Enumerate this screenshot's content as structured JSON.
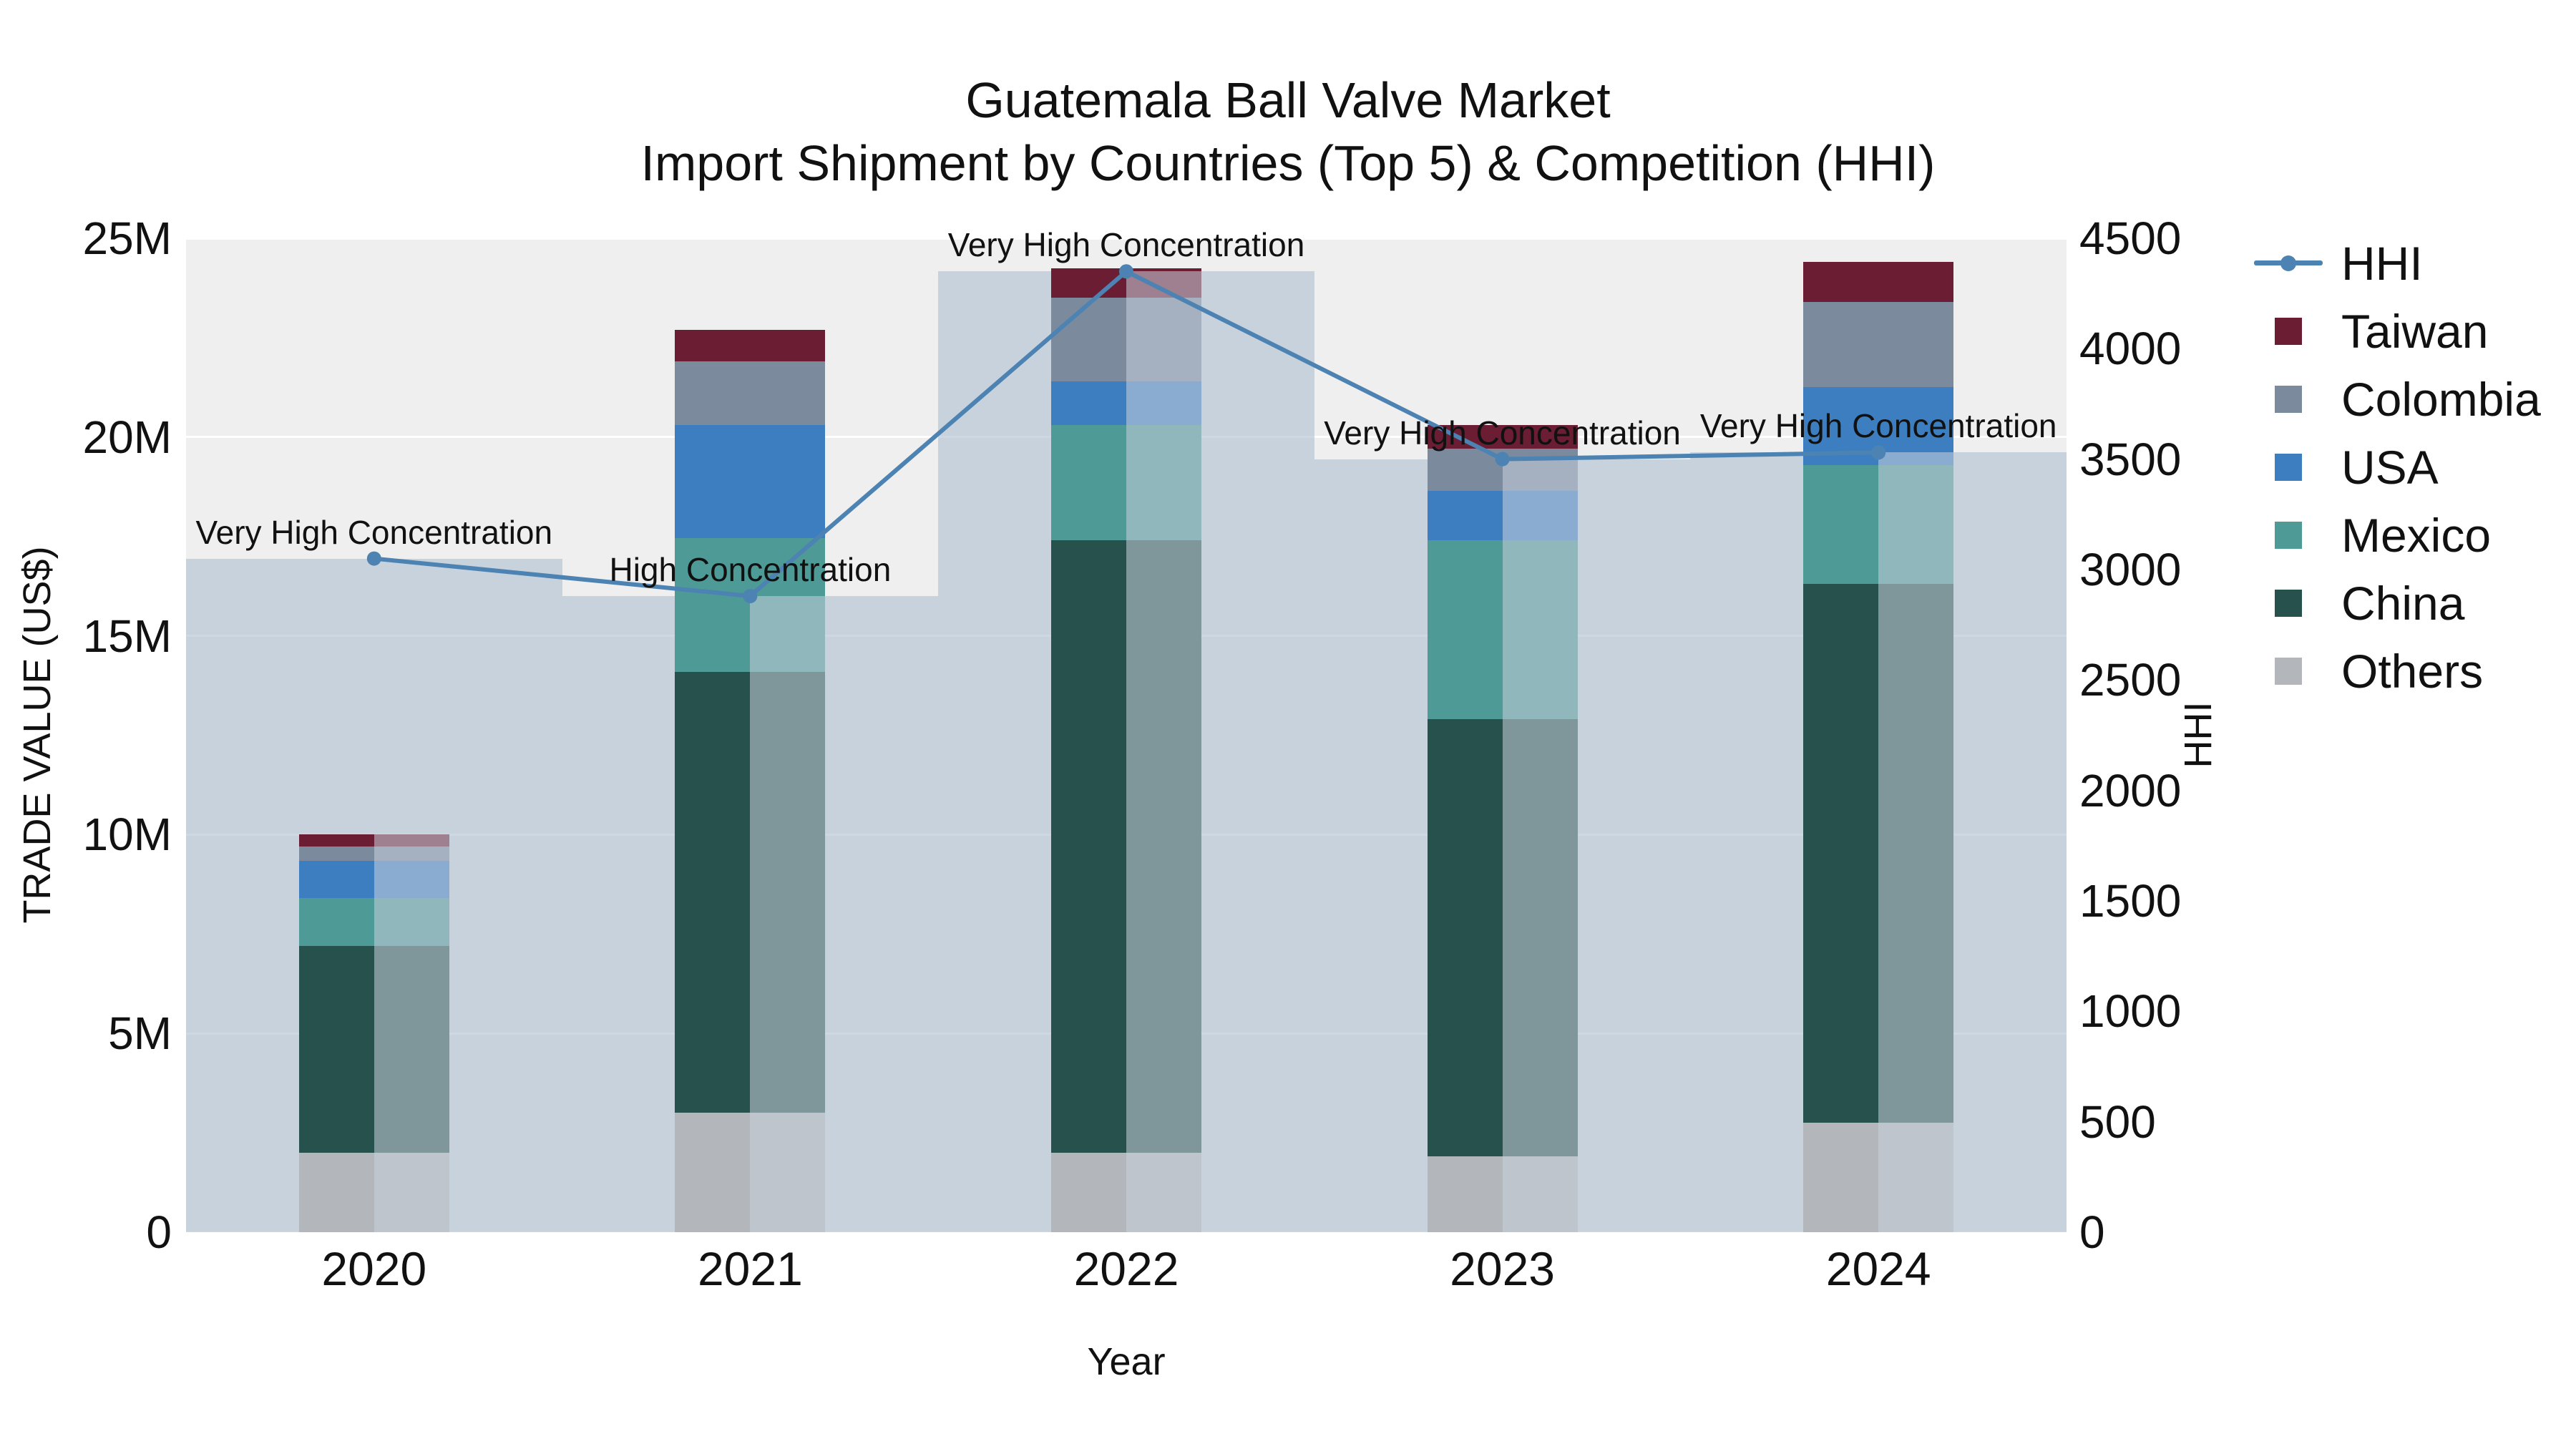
{
  "title": {
    "line1": "Guatemala Ball Valve Market",
    "line2": "Import Shipment by Countries (Top 5) & Competition (HHI)"
  },
  "axes": {
    "x": {
      "title": "Year"
    },
    "y_left": {
      "title": "TRADE VALUE (US$)",
      "tick_labels": [
        "0",
        "5M",
        "10M",
        "15M",
        "20M",
        "25M"
      ],
      "tick_values": [
        0,
        5000000,
        10000000,
        15000000,
        20000000,
        25000000
      ],
      "max": 25000000
    },
    "y_right": {
      "title": "HHI",
      "tick_values": [
        0,
        500,
        1000,
        1500,
        2000,
        2500,
        3000,
        3500,
        4000,
        4500
      ],
      "max": 4500
    }
  },
  "legend": {
    "items": [
      {
        "label": "HHI",
        "type": "line",
        "color": "#4c83b2"
      },
      {
        "label": "Taiwan",
        "type": "swatch",
        "color": "#6b1d33"
      },
      {
        "label": "Colombia",
        "type": "swatch",
        "color": "#7b8a9d"
      },
      {
        "label": "USA",
        "type": "swatch",
        "color": "#3c7ec0"
      },
      {
        "label": "Mexico",
        "type": "swatch",
        "color": "#4d9a96"
      },
      {
        "label": "China",
        "type": "swatch",
        "color": "#27514c"
      },
      {
        "label": "Others",
        "type": "swatch",
        "color": "#b3b6ba"
      }
    ]
  },
  "chart_data": {
    "type": "bar",
    "title": "Guatemala Ball Valve Market — Import Shipment by Countries (Top 5) & Competition (HHI)",
    "xlabel": "Year",
    "ylabel_left": "TRADE VALUE (US$)",
    "ylabel_right": "HHI",
    "ylim_left": [
      0,
      25000000
    ],
    "ylim_right": [
      0,
      4500
    ],
    "categories": [
      "2020",
      "2021",
      "2022",
      "2023",
      "2024"
    ],
    "stack_series": [
      {
        "name": "Others",
        "color": "#b3b6ba",
        "values": [
          2000000,
          3000000,
          2000000,
          1900000,
          2750000
        ]
      },
      {
        "name": "China",
        "color": "#27514c",
        "values": [
          5200000,
          11100000,
          15400000,
          11000000,
          13550000
        ]
      },
      {
        "name": "Mexico",
        "color": "#4d9a96",
        "values": [
          1200000,
          3350000,
          2900000,
          4500000,
          3000000
        ]
      },
      {
        "name": "USA",
        "color": "#3c7ec0",
        "values": [
          950000,
          2850000,
          1100000,
          1250000,
          1950000
        ]
      },
      {
        "name": "Colombia",
        "color": "#7b8a9d",
        "values": [
          350000,
          1600000,
          2100000,
          1050000,
          2150000
        ]
      },
      {
        "name": "Taiwan",
        "color": "#6b1d33",
        "values": [
          300000,
          800000,
          750000,
          600000,
          1000000
        ]
      }
    ],
    "hhi_series": {
      "name": "HHI",
      "line_color": "#4c83b2",
      "bar_fill": "rgba(173,190,208,0.6)",
      "values": [
        3050,
        2880,
        4350,
        3500,
        3530
      ],
      "annotations": [
        "Very High Concentration",
        "High Concentration",
        "Very High Concentration",
        "Very High Concentration",
        "Very High Concentration"
      ]
    }
  }
}
